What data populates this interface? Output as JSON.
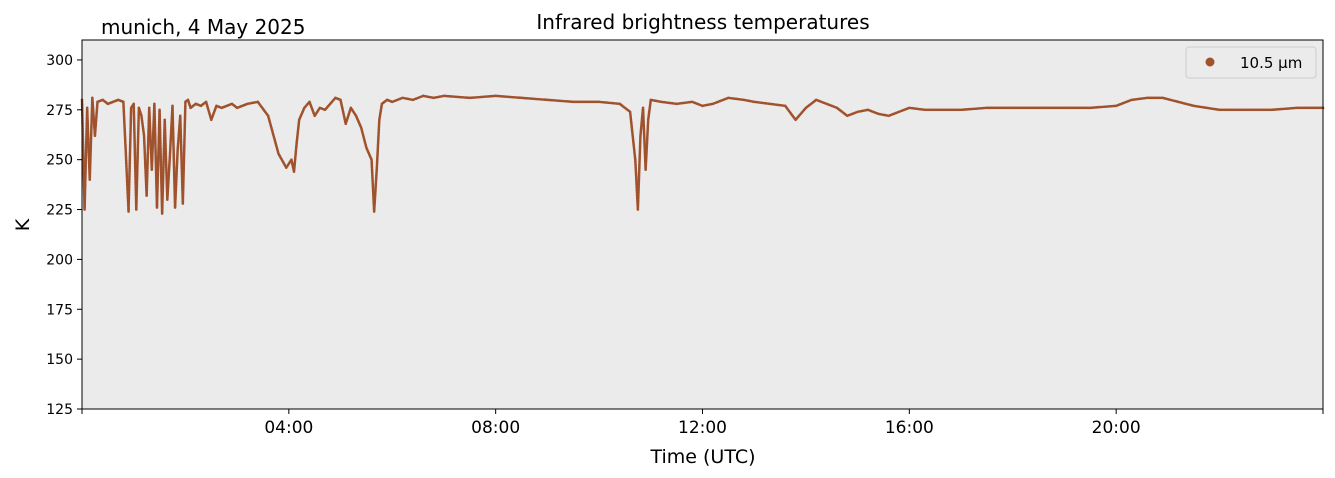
{
  "header": {
    "location_date": "munich, 4 May 2025",
    "title": "Infrared brightness temperatures"
  },
  "chart_data": {
    "type": "scatter",
    "title": "Infrared brightness temperatures",
    "xlabel": "Time (UTC)",
    "ylabel": "K",
    "xlim": [
      0,
      24
    ],
    "ylim": [
      125,
      310
    ],
    "x_ticks": [
      4,
      8,
      12,
      16,
      20
    ],
    "x_tick_labels": [
      "04:00",
      "08:00",
      "12:00",
      "16:00",
      "20:00"
    ],
    "y_ticks": [
      125,
      150,
      175,
      200,
      225,
      250,
      275,
      300
    ],
    "y_tick_labels": [
      "125",
      "150",
      "175",
      "200",
      "225",
      "250",
      "275",
      "300"
    ],
    "grid": false,
    "legend_position": "top-right",
    "colors": {
      "series": "#A0522D",
      "plot_background": "#EBEBEB"
    },
    "series": [
      {
        "name": "10.5 µm",
        "x": [
          0.0,
          0.05,
          0.1,
          0.15,
          0.2,
          0.25,
          0.3,
          0.4,
          0.5,
          0.6,
          0.7,
          0.8,
          0.85,
          0.9,
          0.95,
          1.0,
          1.05,
          1.1,
          1.15,
          1.2,
          1.25,
          1.3,
          1.35,
          1.4,
          1.45,
          1.5,
          1.55,
          1.6,
          1.65,
          1.7,
          1.75,
          1.8,
          1.85,
          1.9,
          1.95,
          2.0,
          2.05,
          2.1,
          2.2,
          2.3,
          2.4,
          2.5,
          2.6,
          2.7,
          2.8,
          2.9,
          3.0,
          3.1,
          3.2,
          3.4,
          3.6,
          3.8,
          3.95,
          4.05,
          4.1,
          4.15,
          4.2,
          4.3,
          4.4,
          4.5,
          4.6,
          4.7,
          4.8,
          4.9,
          5.0,
          5.1,
          5.2,
          5.3,
          5.4,
          5.5,
          5.6,
          5.65,
          5.7,
          5.75,
          5.8,
          5.9,
          6.0,
          6.2,
          6.4,
          6.6,
          6.8,
          7.0,
          7.5,
          8.0,
          8.5,
          9.0,
          9.5,
          10.0,
          10.4,
          10.6,
          10.7,
          10.75,
          10.8,
          10.85,
          10.9,
          10.95,
          11.0,
          11.2,
          11.5,
          11.8,
          12.0,
          12.2,
          12.5,
          12.8,
          13.0,
          13.3,
          13.6,
          13.8,
          14.0,
          14.2,
          14.4,
          14.6,
          14.8,
          15.0,
          15.2,
          15.4,
          15.6,
          15.8,
          16.0,
          16.3,
          16.6,
          17.0,
          17.5,
          18.0,
          18.5,
          19.0,
          19.5,
          20.0,
          20.3,
          20.6,
          20.9,
          21.2,
          21.5,
          22.0,
          22.5,
          23.0,
          23.5,
          24.0
        ],
        "y": [
          280,
          225,
          276,
          240,
          281,
          262,
          279,
          280,
          278,
          279,
          280,
          279,
          252,
          224,
          276,
          278,
          225,
          276,
          272,
          262,
          232,
          276,
          245,
          278,
          226,
          275,
          223,
          270,
          230,
          252,
          277,
          226,
          255,
          272,
          228,
          279,
          280,
          276,
          278,
          277,
          279,
          270,
          277,
          276,
          277,
          278,
          276,
          277,
          278,
          279,
          272,
          253,
          246,
          250,
          244,
          258,
          270,
          276,
          279,
          272,
          276,
          275,
          278,
          281,
          280,
          268,
          276,
          272,
          266,
          256,
          250,
          224,
          245,
          270,
          278,
          280,
          279,
          281,
          280,
          282,
          281,
          282,
          281,
          282,
          281,
          280,
          279,
          279,
          278,
          274,
          250,
          225,
          262,
          276,
          245,
          270,
          280,
          279,
          278,
          279,
          277,
          278,
          281,
          280,
          279,
          278,
          277,
          270,
          276,
          280,
          278,
          276,
          272,
          274,
          275,
          273,
          272,
          274,
          276,
          275,
          275,
          275,
          276,
          276,
          276,
          276,
          276,
          277,
          280,
          281,
          281,
          279,
          277,
          275,
          275,
          275,
          276,
          276
        ]
      }
    ]
  }
}
